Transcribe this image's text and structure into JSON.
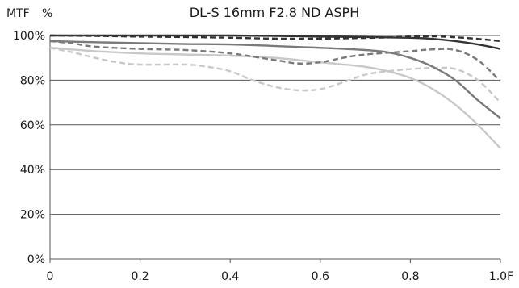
{
  "chart_data": {
    "type": "line",
    "title": "DL-S 16mm F2.8 ND ASPH",
    "ylabel_left": "MTF",
    "ylabel_unit": "%",
    "xlim": [
      0,
      1.0
    ],
    "ylim": [
      0,
      100
    ],
    "x_ticks": [
      {
        "value": 0,
        "label": "0"
      },
      {
        "value": 0.2,
        "label": "0.2"
      },
      {
        "value": 0.4,
        "label": "0.4"
      },
      {
        "value": 0.6,
        "label": "0.6"
      },
      {
        "value": 0.8,
        "label": "0.8"
      },
      {
        "value": 1.0,
        "label": "1.0F"
      }
    ],
    "y_ticks": [
      {
        "value": 0,
        "label": "0%"
      },
      {
        "value": 20,
        "label": "20%"
      },
      {
        "value": 40,
        "label": "40%"
      },
      {
        "value": 60,
        "label": "60%"
      },
      {
        "value": 80,
        "label": "80%"
      },
      {
        "value": 100,
        "label": "100%"
      }
    ],
    "grid": "horizontal",
    "legend": "none",
    "series": [
      {
        "color": "#333333",
        "style": "solid",
        "points": [
          [
            0,
            100
          ],
          [
            0.1,
            100
          ],
          [
            0.2,
            100
          ],
          [
            0.3,
            100
          ],
          [
            0.4,
            100
          ],
          [
            0.5,
            99.8
          ],
          [
            0.6,
            99.5
          ],
          [
            0.7,
            99.3
          ],
          [
            0.8,
            99
          ],
          [
            0.85,
            98.5
          ],
          [
            0.9,
            97.5
          ],
          [
            0.95,
            96
          ],
          [
            1.0,
            94
          ]
        ]
      },
      {
        "color": "#333333",
        "style": "dashed",
        "points": [
          [
            0,
            100
          ],
          [
            0.1,
            99.8
          ],
          [
            0.2,
            99.5
          ],
          [
            0.3,
            99.3
          ],
          [
            0.4,
            99
          ],
          [
            0.5,
            98.6
          ],
          [
            0.6,
            98.6
          ],
          [
            0.7,
            98.9
          ],
          [
            0.8,
            99.4
          ],
          [
            0.85,
            99.6
          ],
          [
            0.9,
            99.2
          ],
          [
            0.95,
            98.5
          ],
          [
            1.0,
            97.5
          ]
        ]
      },
      {
        "color": "#7a7a7a",
        "style": "solid",
        "points": [
          [
            0,
            97.5
          ],
          [
            0.1,
            97
          ],
          [
            0.2,
            96.6
          ],
          [
            0.3,
            96.2
          ],
          [
            0.4,
            96
          ],
          [
            0.5,
            95.3
          ],
          [
            0.6,
            94.5
          ],
          [
            0.7,
            93.5
          ],
          [
            0.75,
            92.5
          ],
          [
            0.8,
            90
          ],
          [
            0.85,
            86
          ],
          [
            0.9,
            80
          ],
          [
            0.95,
            71
          ],
          [
            1.0,
            63
          ]
        ]
      },
      {
        "color": "#7a7a7a",
        "style": "dashed",
        "points": [
          [
            0,
            97.5
          ],
          [
            0.05,
            96.5
          ],
          [
            0.1,
            95
          ],
          [
            0.2,
            94
          ],
          [
            0.3,
            93.5
          ],
          [
            0.4,
            92
          ],
          [
            0.5,
            89
          ],
          [
            0.55,
            87.5
          ],
          [
            0.6,
            88
          ],
          [
            0.65,
            90
          ],
          [
            0.7,
            91.5
          ],
          [
            0.8,
            93
          ],
          [
            0.85,
            93.8
          ],
          [
            0.9,
            93.5
          ],
          [
            0.95,
            89
          ],
          [
            1.0,
            79.5
          ]
        ]
      },
      {
        "color": "#c8c8c8",
        "style": "solid",
        "points": [
          [
            0,
            94.5
          ],
          [
            0.1,
            93
          ],
          [
            0.2,
            92
          ],
          [
            0.3,
            91.5
          ],
          [
            0.4,
            91
          ],
          [
            0.5,
            90
          ],
          [
            0.6,
            88
          ],
          [
            0.7,
            86
          ],
          [
            0.75,
            84
          ],
          [
            0.8,
            81
          ],
          [
            0.85,
            76
          ],
          [
            0.9,
            69
          ],
          [
            0.95,
            60
          ],
          [
            1.0,
            49.5
          ]
        ]
      },
      {
        "color": "#c8c8c8",
        "style": "dashed",
        "points": [
          [
            0,
            94.5
          ],
          [
            0.05,
            92.5
          ],
          [
            0.1,
            90
          ],
          [
            0.15,
            88
          ],
          [
            0.2,
            87
          ],
          [
            0.3,
            87
          ],
          [
            0.35,
            86
          ],
          [
            0.4,
            84
          ],
          [
            0.45,
            80
          ],
          [
            0.5,
            77
          ],
          [
            0.55,
            75.5
          ],
          [
            0.6,
            76
          ],
          [
            0.65,
            79
          ],
          [
            0.7,
            82.5
          ],
          [
            0.75,
            84
          ],
          [
            0.8,
            85
          ],
          [
            0.85,
            85.5
          ],
          [
            0.9,
            85
          ],
          [
            0.95,
            80
          ],
          [
            1.0,
            70
          ]
        ]
      }
    ]
  }
}
